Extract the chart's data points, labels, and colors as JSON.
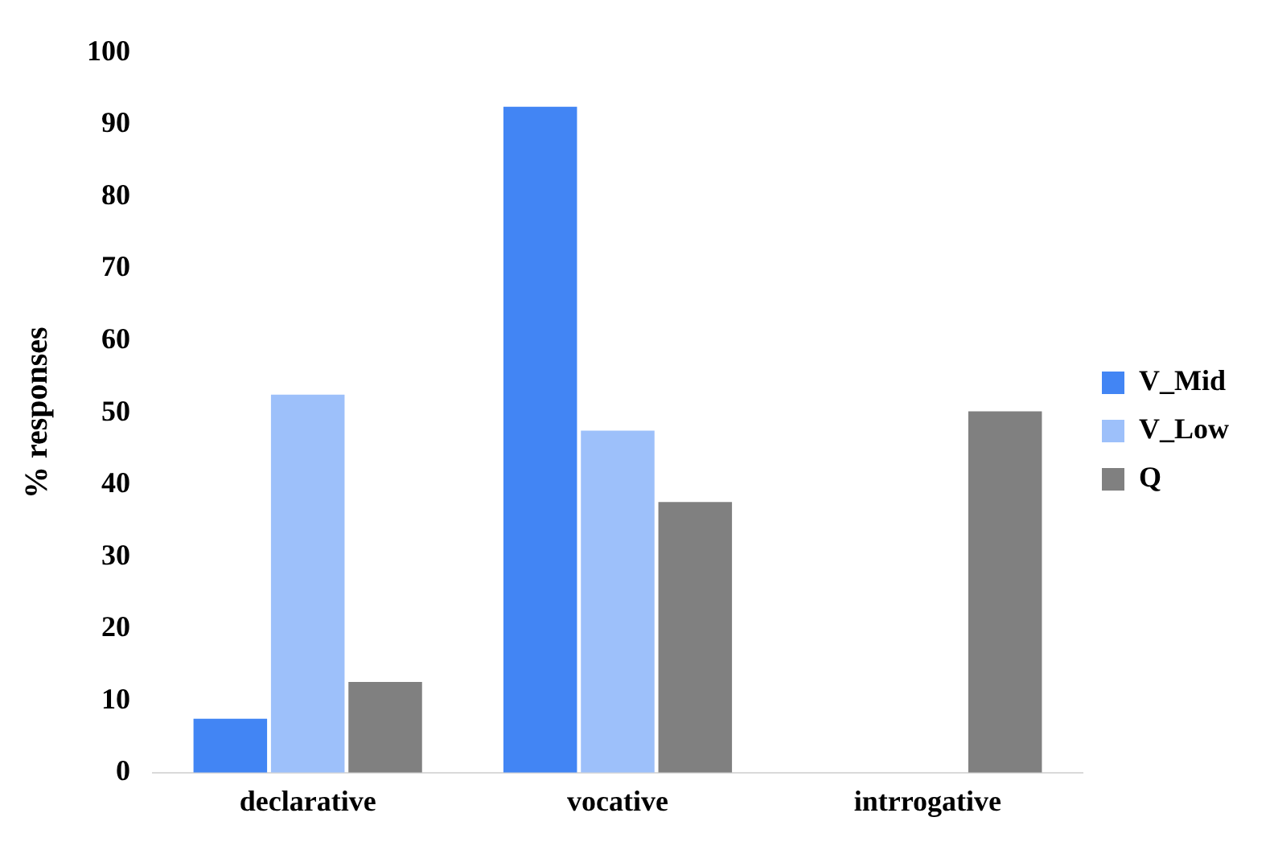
{
  "chart_data": {
    "type": "bar",
    "ylabel": "% responses",
    "categories": [
      "declarative",
      "vocative",
      "intrrogative"
    ],
    "series": [
      {
        "name": "V_Mid",
        "color": "#4285f4",
        "values": [
          7.5,
          92.5,
          0
        ]
      },
      {
        "name": "V_Low",
        "color": "#9dc0fa",
        "values": [
          52.5,
          47.5,
          0
        ]
      },
      {
        "name": "Q",
        "color": "#808080",
        "values": [
          12.6,
          37.6,
          50.2
        ]
      }
    ],
    "ylim": [
      0,
      100
    ],
    "yticks": [
      0,
      10,
      20,
      30,
      40,
      50,
      60,
      70,
      80,
      90,
      100
    ],
    "grid": false,
    "legend": "right"
  }
}
